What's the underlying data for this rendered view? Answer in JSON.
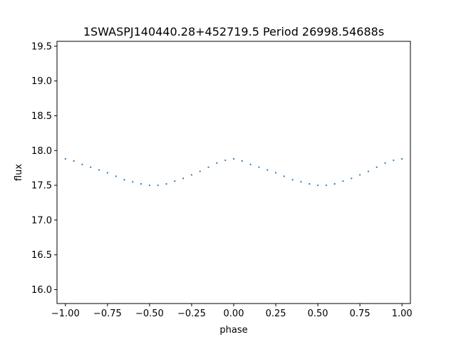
{
  "chart_data": {
    "type": "scatter",
    "title": "1SWASPJ140440.28+452719.5 Period 26998.54688s",
    "xlabel": "phase",
    "ylabel": "flux",
    "xlim": [
      -1.05,
      1.05
    ],
    "ylim": [
      15.8,
      19.57
    ],
    "grid": false,
    "legend": "none",
    "point_color": "#1f77b4",
    "xticks": [
      -1.0,
      -0.75,
      -0.5,
      -0.25,
      0.0,
      0.25,
      0.5,
      0.75,
      1.0
    ],
    "xtick_labels": [
      "−1.00",
      "−0.75",
      "−0.50",
      "−0.25",
      "0.00",
      "0.25",
      "0.50",
      "0.75",
      "1.00"
    ],
    "yticks": [
      16.0,
      16.5,
      17.0,
      17.5,
      18.0,
      18.5,
      19.0,
      19.5
    ],
    "ytick_labels": [
      "16.0",
      "16.5",
      "17.0",
      "17.5",
      "18.0",
      "18.5",
      "19.0",
      "19.5"
    ],
    "series": [
      {
        "x": [
          -1.0,
          -0.95,
          -0.9,
          -0.85,
          -0.8,
          -0.75,
          -0.7,
          -0.65,
          -0.6,
          -0.55,
          -0.5,
          -0.45,
          -0.4,
          -0.35,
          -0.3,
          -0.25,
          -0.2,
          -0.15,
          -0.1,
          -0.05,
          0.0,
          0.05,
          0.1,
          0.15,
          0.2,
          0.25,
          0.3,
          0.35,
          0.4,
          0.45,
          0.5,
          0.55,
          0.6,
          0.65,
          0.7,
          0.75,
          0.8,
          0.85,
          0.9,
          0.95,
          1.0
        ],
        "y": [
          17.88,
          17.85,
          17.8,
          17.76,
          17.72,
          17.68,
          17.63,
          17.58,
          17.55,
          17.52,
          17.5,
          17.5,
          17.52,
          17.56,
          17.6,
          17.65,
          17.7,
          17.76,
          17.82,
          17.86,
          17.88,
          17.85,
          17.8,
          17.76,
          17.72,
          17.68,
          17.63,
          17.58,
          17.55,
          17.52,
          17.5,
          17.5,
          17.52,
          17.56,
          17.6,
          17.65,
          17.7,
          17.76,
          17.82,
          17.86,
          17.88
        ]
      }
    ]
  }
}
